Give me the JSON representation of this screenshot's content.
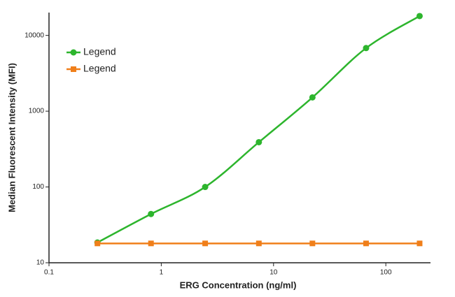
{
  "chart_data": {
    "type": "scatter",
    "x_label": "ERG Concentration (ng/ml)",
    "y_label": "Median Fluorescent Intensity (MFI)",
    "x": [
      0.27,
      0.81,
      2.46,
      7.4,
      22.2,
      66.7,
      200
    ],
    "series": [
      {
        "name": "Legend",
        "color": "#2db52d",
        "marker": "circle",
        "values": [
          18.5,
          44,
          100,
          390,
          1520,
          6800,
          18000
        ]
      },
      {
        "name": "Legend",
        "color": "#f07f1a",
        "marker": "square",
        "values": [
          18,
          18,
          18,
          18,
          18,
          18,
          18
        ]
      }
    ],
    "log_x": true,
    "log_y": true,
    "xlim": [
      0.1,
      250
    ],
    "xticks": [
      0.1,
      1,
      10,
      100
    ],
    "ylim": [
      10,
      20000
    ],
    "yticks": [
      10,
      100,
      1000,
      10000
    ],
    "legend": "upper-left"
  }
}
